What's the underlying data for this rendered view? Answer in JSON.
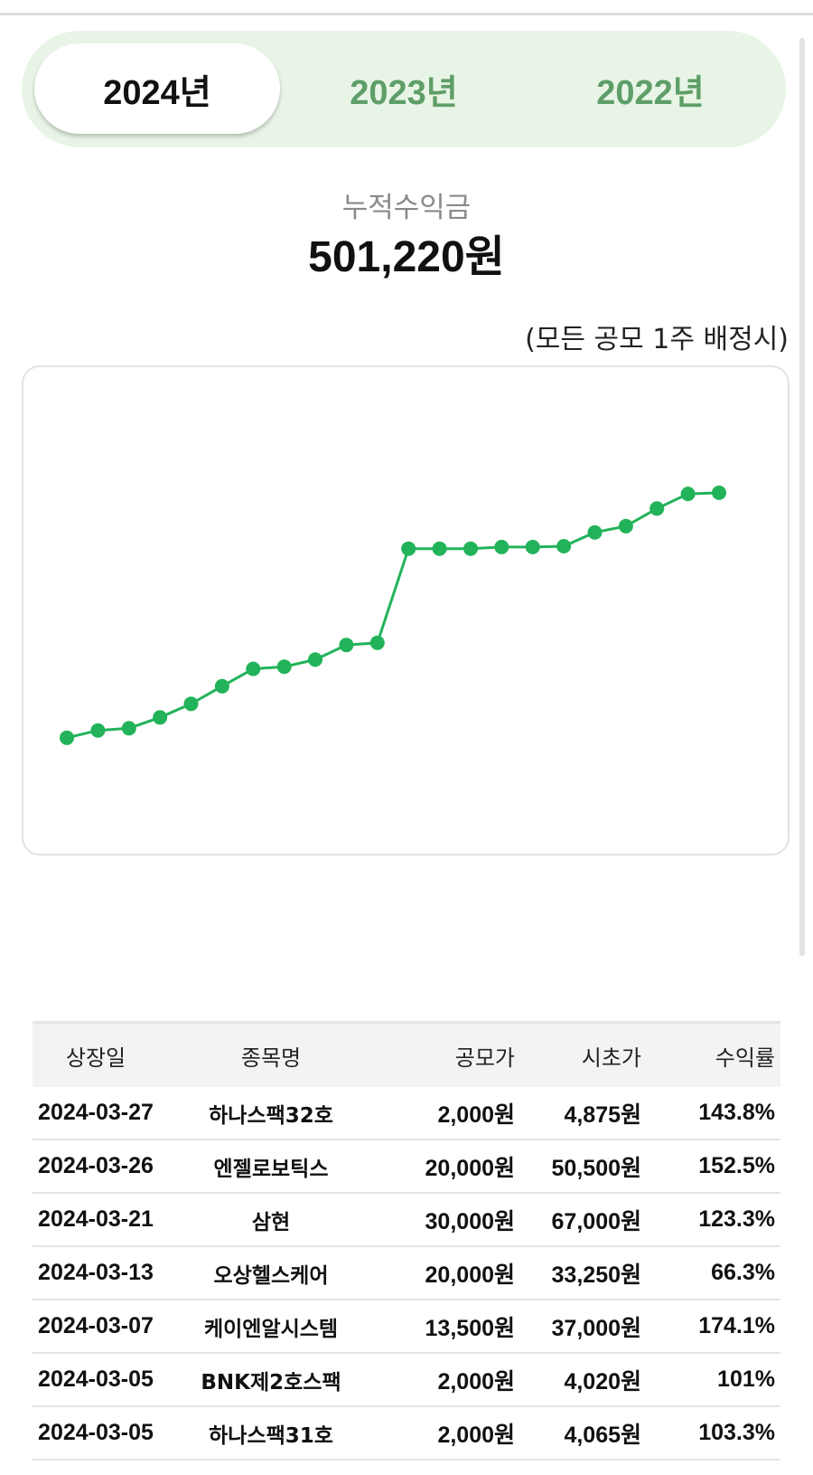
{
  "year_tabs": [
    {
      "label": "2024년",
      "active": true
    },
    {
      "label": "2023년",
      "active": false
    },
    {
      "label": "2022년",
      "active": false
    }
  ],
  "summary": {
    "label": "누적수익금",
    "value": "501,220원"
  },
  "note": "(모든 공모 1주 배정시)",
  "colors": {
    "accent": "#22b35a",
    "tab_bg": "#e8f5e6",
    "tab_inactive_text": "#5e9e68"
  },
  "chart_data": {
    "type": "line",
    "values": [
      3.4,
      6.1,
      6.9,
      10.9,
      15.9,
      22.4,
      28.8,
      29.6,
      32.2,
      37.6,
      38.4,
      73.1,
      73.1,
      73.1,
      73.7,
      73.7,
      74.0,
      79.1,
      81.4,
      87.9,
      93.3,
      93.7
    ],
    "ylim": [
      0,
      100
    ],
    "grid": false,
    "legend": "none",
    "color": "#22b35a"
  },
  "table": {
    "headers": [
      "상장일",
      "종목명",
      "공모가",
      "시초가",
      "수익률"
    ],
    "rows": [
      [
        "2024-03-27",
        "하나스팩32호",
        "2,000원",
        "4,875원",
        "143.8%"
      ],
      [
        "2024-03-26",
        "엔젤로보틱스",
        "20,000원",
        "50,500원",
        "152.5%"
      ],
      [
        "2024-03-21",
        "삼현",
        "30,000원",
        "67,000원",
        "123.3%"
      ],
      [
        "2024-03-13",
        "오상헬스케어",
        "20,000원",
        "33,250원",
        "66.3%"
      ],
      [
        "2024-03-07",
        "케이엔알시스템",
        "13,500원",
        "37,000원",
        "174.1%"
      ],
      [
        "2024-03-05",
        "BNK제2호스팩",
        "2,000원",
        "4,020원",
        "101%"
      ],
      [
        "2024-03-05",
        "하나스팩31호",
        "2,000원",
        "4,065원",
        "103.3%"
      ]
    ]
  }
}
